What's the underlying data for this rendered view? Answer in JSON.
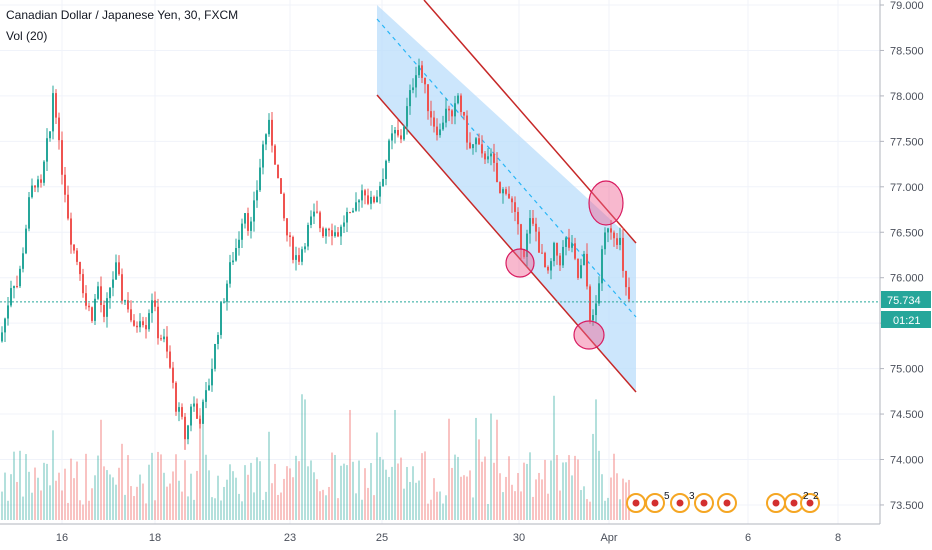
{
  "header": {
    "symbol_title": "Canadian Dollar / Japanese Yen, 30, FXCM",
    "volume_indicator": "Vol (20)"
  },
  "price_axis": {
    "labels": [
      "79.000",
      "78.500",
      "78.000",
      "77.500",
      "77.000",
      "76.500",
      "76.000",
      "75.500",
      "75.000",
      "74.500",
      "74.000",
      "73.500"
    ],
    "current_price": "75.734",
    "countdown": "01:21"
  },
  "time_axis": {
    "labels": [
      "16",
      "18",
      "23",
      "25",
      "30",
      "Apr",
      "6",
      "8"
    ]
  },
  "event_badges": [
    "5",
    "3",
    "2",
    "2"
  ],
  "colors": {
    "up": "#26a69a",
    "down": "#ef5350",
    "channel_fill": "#bbdefb",
    "channel_line": "#c62828",
    "midline": "#29b6f6",
    "price_tag": "#26a69a",
    "circle": "#f06292"
  },
  "chart_data": {
    "type": "candlestick",
    "title": "Canadian Dollar / Japanese Yen, 30, FXCM",
    "ylim": [
      73.4,
      79.0
    ],
    "last_price": 75.734,
    "x_ticks": [
      "16",
      "18",
      "23",
      "25",
      "30",
      "Apr",
      "6",
      "8"
    ],
    "y_ticks": [
      79.0,
      78.5,
      78.0,
      77.5,
      77.0,
      76.5,
      76.0,
      75.5,
      75.0,
      74.5,
      74.0,
      73.5
    ],
    "close_path": [
      [
        0,
        75.3
      ],
      [
        6,
        75.6
      ],
      [
        12,
        76.0
      ],
      [
        18,
        75.9
      ],
      [
        24,
        76.4
      ],
      [
        30,
        76.9
      ],
      [
        36,
        77.1
      ],
      [
        40,
        76.9
      ],
      [
        46,
        77.4
      ],
      [
        50,
        77.6
      ],
      [
        54,
        78.2
      ],
      [
        58,
        77.5
      ],
      [
        62,
        77.2
      ],
      [
        66,
        76.9
      ],
      [
        70,
        76.5
      ],
      [
        74,
        76.3
      ],
      [
        80,
        76.1
      ],
      [
        86,
        75.7
      ],
      [
        92,
        75.6
      ],
      [
        98,
        75.9
      ],
      [
        104,
        75.5
      ],
      [
        110,
        75.9
      ],
      [
        116,
        76.1
      ],
      [
        122,
        75.8
      ],
      [
        128,
        75.7
      ],
      [
        134,
        75.4
      ],
      [
        140,
        75.6
      ],
      [
        146,
        75.5
      ],
      [
        152,
        75.8
      ],
      [
        158,
        75.4
      ],
      [
        164,
        75.3
      ],
      [
        170,
        75.0
      ],
      [
        176,
        74.6
      ],
      [
        182,
        74.4
      ],
      [
        186,
        74.2
      ],
      [
        192,
        74.7
      ],
      [
        198,
        74.4
      ],
      [
        204,
        74.6
      ],
      [
        210,
        74.9
      ],
      [
        216,
        75.3
      ],
      [
        220,
        75.6
      ],
      [
        226,
        75.9
      ],
      [
        232,
        76.2
      ],
      [
        238,
        76.4
      ],
      [
        244,
        76.8
      ],
      [
        250,
        76.5
      ],
      [
        256,
        76.9
      ],
      [
        262,
        77.4
      ],
      [
        268,
        77.7
      ],
      [
        274,
        77.4
      ],
      [
        280,
        76.9
      ],
      [
        286,
        76.5
      ],
      [
        292,
        76.3
      ],
      [
        298,
        76.2
      ],
      [
        304,
        76.4
      ],
      [
        310,
        76.6
      ],
      [
        316,
        76.7
      ],
      [
        322,
        76.5
      ],
      [
        328,
        76.6
      ],
      [
        334,
        76.5
      ],
      [
        340,
        76.5
      ],
      [
        346,
        76.7
      ],
      [
        352,
        76.6
      ],
      [
        358,
        76.9
      ],
      [
        364,
        77.0
      ],
      [
        370,
        76.8
      ],
      [
        376,
        76.9
      ],
      [
        382,
        77.1
      ],
      [
        388,
        77.4
      ],
      [
        394,
        77.6
      ],
      [
        400,
        77.5
      ],
      [
        406,
        77.8
      ],
      [
        412,
        78.1
      ],
      [
        418,
        78.4
      ],
      [
        422,
        78.2
      ],
      [
        428,
        77.9
      ],
      [
        434,
        77.7
      ],
      [
        440,
        77.6
      ],
      [
        446,
        77.9
      ],
      [
        452,
        77.7
      ],
      [
        458,
        78.0
      ],
      [
        464,
        77.7
      ],
      [
        470,
        77.4
      ],
      [
        476,
        77.5
      ],
      [
        482,
        77.3
      ],
      [
        488,
        77.4
      ],
      [
        494,
        77.2
      ],
      [
        500,
        76.9
      ],
      [
        506,
        77.0
      ],
      [
        512,
        76.8
      ],
      [
        518,
        76.5
      ],
      [
        524,
        76.3
      ],
      [
        530,
        76.6
      ],
      [
        536,
        76.5
      ],
      [
        542,
        76.2
      ],
      [
        548,
        76.0
      ],
      [
        554,
        76.3
      ],
      [
        560,
        76.2
      ],
      [
        566,
        76.4
      ],
      [
        572,
        76.3
      ],
      [
        578,
        76.0
      ],
      [
        584,
        76.2
      ],
      [
        590,
        75.6
      ],
      [
        594,
        75.5
      ],
      [
        598,
        75.9
      ],
      [
        604,
        76.4
      ],
      [
        608,
        76.6
      ],
      [
        614,
        76.5
      ],
      [
        620,
        76.4
      ],
      [
        624,
        75.9
      ],
      [
        630,
        75.73
      ]
    ],
    "annotations": {
      "channel": "descending channel with upper, middle and lower lines",
      "circles": 3
    }
  }
}
